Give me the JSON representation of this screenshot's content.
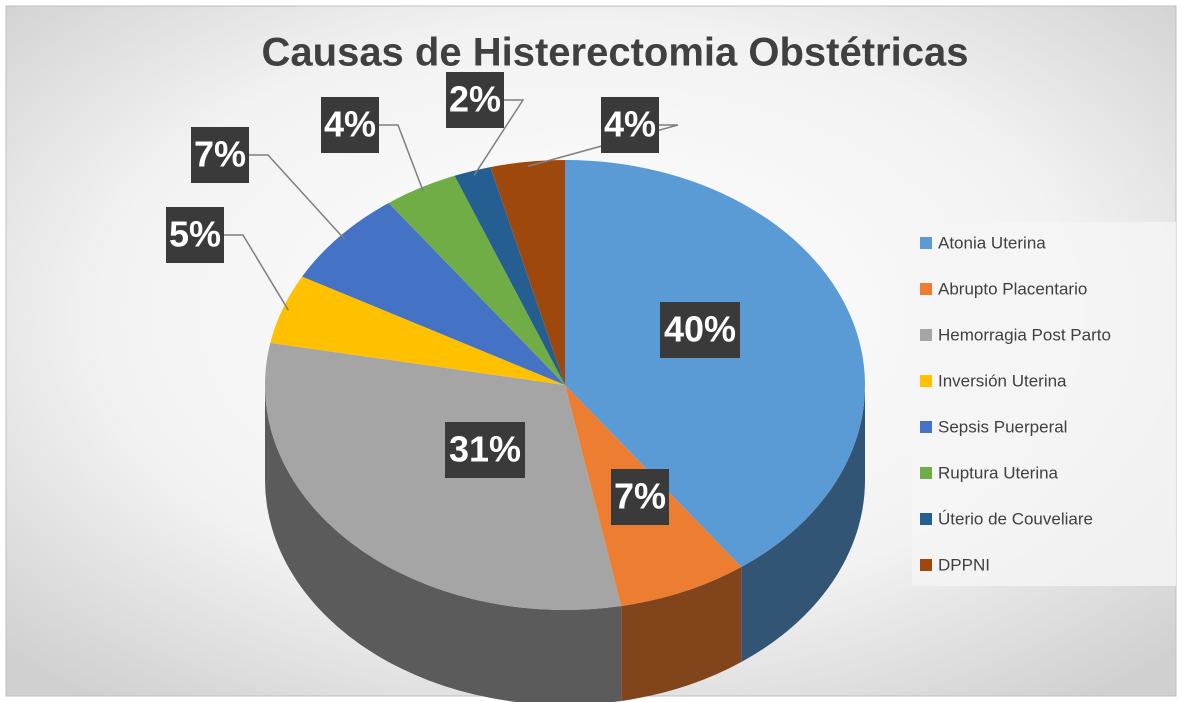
{
  "chart_data": {
    "type": "pie",
    "title": "Causas de Histerectomia Obstétricas",
    "categories": [
      "Atonia Uterina",
      "Abrupto Placentario",
      "Hemorragia Post Parto",
      "Inversión Uterina",
      "Sepsis Puerperal",
      "Ruptura Uterina",
      "Úterio de Couveliare",
      "DPPNI"
    ],
    "values": [
      40,
      7,
      31,
      5,
      7,
      4,
      2,
      4
    ],
    "value_labels": [
      "40%",
      "7%",
      "31%",
      "5%",
      "7%",
      "4%",
      "2%",
      "4%"
    ],
    "colors": [
      "#5b9bd5",
      "#ed7d31",
      "#a5a5a5",
      "#ffc000",
      "#4472c4",
      "#70ad47",
      "#255e91",
      "#9e480e"
    ],
    "legend": "right"
  }
}
